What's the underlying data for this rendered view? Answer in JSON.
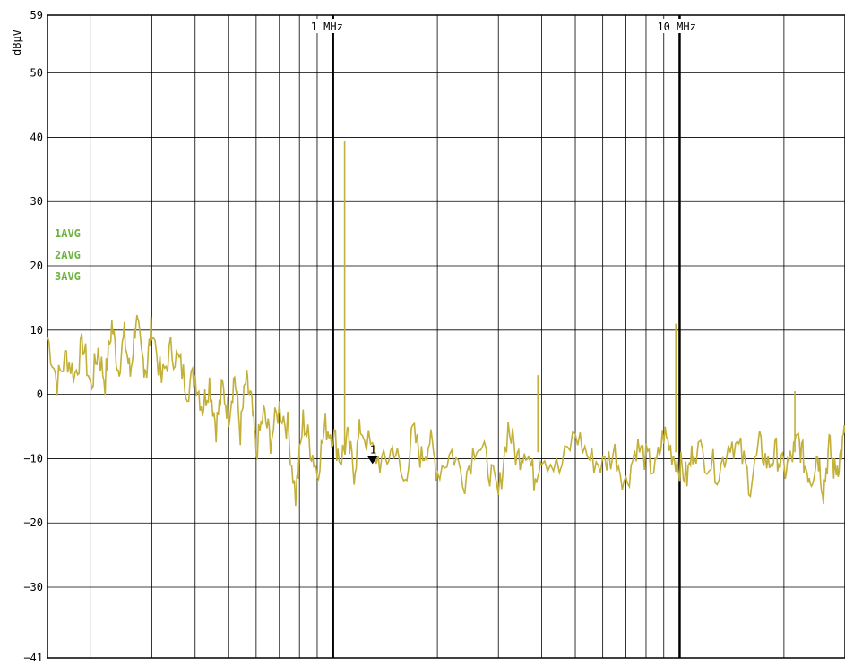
{
  "chart_data": {
    "type": "line",
    "ylabel": "dBµV",
    "ylim": [
      -41,
      59
    ],
    "yticks": [
      59,
      50,
      40,
      30,
      20,
      10,
      0,
      -10,
      -20,
      -30,
      -41
    ],
    "x_scale": "log",
    "x_unit": "MHz",
    "xlim": [
      0.15,
      30
    ],
    "x_tick_labels": [
      {
        "value": 1,
        "text": "1 MHz"
      },
      {
        "value": 10,
        "text": "10 MHz"
      }
    ],
    "trace_labels": [
      "1AVG",
      "2AVG",
      "3AVG"
    ],
    "marker": {
      "label": "1",
      "x": 1.3,
      "y": -10
    },
    "series": [
      {
        "color": "#c2b03a",
        "x": [
          0.15,
          0.16,
          0.17,
          0.18,
          0.19,
          0.2,
          0.21,
          0.22,
          0.23,
          0.24,
          0.25,
          0.26,
          0.27,
          0.28,
          0.29,
          0.3,
          0.32,
          0.34,
          0.36,
          0.38,
          0.4,
          0.42,
          0.44,
          0.46,
          0.48,
          0.5,
          0.52,
          0.54,
          0.56,
          0.58,
          0.6,
          0.63,
          0.66,
          0.7,
          0.74,
          0.78,
          0.82,
          0.86,
          0.9,
          0.95,
          1.0,
          1.05,
          1.1,
          1.15,
          1.2,
          1.3,
          1.4,
          1.5,
          1.6,
          1.7,
          1.8,
          1.9,
          2.0,
          2.2,
          2.4,
          2.6,
          2.8,
          3.0,
          3.2,
          3.4,
          3.6,
          3.8,
          4.0,
          4.5,
          5.0,
          5.5,
          6.0,
          6.5,
          7.0,
          7.5,
          8.0,
          8.5,
          9.0,
          9.5,
          10.0,
          10.5,
          11.0,
          12.0,
          13.0,
          14.0,
          15.0,
          16.0,
          17.0,
          18.0,
          19.0,
          20.0,
          21.0,
          22.0,
          23.0,
          24.0,
          25.0,
          26.0,
          27.0,
          28.0,
          29.0,
          30.0
        ],
        "values": [
          9,
          2,
          6,
          3,
          8,
          1,
          7,
          2,
          11,
          4,
          9,
          3,
          12,
          6,
          4,
          11,
          2,
          7,
          5,
          1,
          3,
          -2,
          2,
          -5,
          1,
          -3,
          3,
          -6,
          2,
          -1,
          -9,
          -3,
          -7,
          -2,
          -5,
          -16,
          -4,
          -8,
          -12,
          -5,
          -6,
          -10,
          -7,
          -12,
          -5,
          -9,
          -11,
          -8,
          -14,
          -6,
          -10,
          -7,
          -12,
          -9,
          -13,
          -7,
          -11,
          -16,
          -5,
          -10,
          -8,
          -13,
          -9,
          -12,
          -6,
          -10,
          -11,
          -9,
          -14,
          -8,
          -10,
          -12,
          -6,
          -9,
          -11,
          -13,
          -8,
          -10,
          -12,
          -7,
          -9,
          -14,
          -8,
          -11,
          -9,
          -12,
          -10,
          -7,
          -11,
          -13,
          -9,
          -15,
          -8,
          -12,
          -10,
          -6
        ],
        "spikes": [
          {
            "x": 1.08,
            "y": 39.5
          },
          {
            "x": 9.75,
            "y": 11
          },
          {
            "x": 3.9,
            "y": 3
          },
          {
            "x": 21.5,
            "y": 0.5
          }
        ]
      }
    ]
  }
}
